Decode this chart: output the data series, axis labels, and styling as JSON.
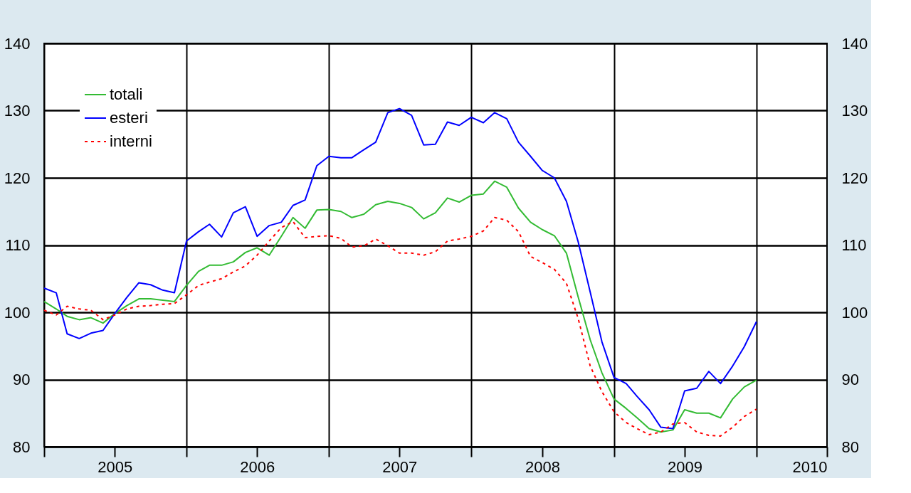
{
  "chart_data": {
    "type": "line",
    "x": [
      "2005-01",
      "2005-02",
      "2005-03",
      "2005-04",
      "2005-05",
      "2005-06",
      "2005-07",
      "2005-08",
      "2005-09",
      "2005-10",
      "2005-11",
      "2005-12",
      "2006-01",
      "2006-02",
      "2006-03",
      "2006-04",
      "2006-05",
      "2006-06",
      "2006-07",
      "2006-08",
      "2006-09",
      "2006-10",
      "2006-11",
      "2006-12",
      "2007-01",
      "2007-02",
      "2007-03",
      "2007-04",
      "2007-05",
      "2007-06",
      "2007-07",
      "2007-08",
      "2007-09",
      "2007-10",
      "2007-11",
      "2007-12",
      "2008-01",
      "2008-02",
      "2008-03",
      "2008-04",
      "2008-05",
      "2008-06",
      "2008-07",
      "2008-08",
      "2008-09",
      "2008-10",
      "2008-11",
      "2008-12",
      "2009-01",
      "2009-02",
      "2009-03",
      "2009-04",
      "2009-05",
      "2009-06",
      "2009-07",
      "2009-08",
      "2009-09",
      "2009-10",
      "2009-11",
      "2009-12",
      "2010-01"
    ],
    "series": [
      {
        "name": "totali",
        "color": "#33bb33",
        "line_style": "solid",
        "values": [
          101.6,
          100.5,
          99.4,
          98.9,
          99.2,
          98.4,
          99.8,
          101,
          102,
          102,
          101.8,
          101.6,
          104,
          106.1,
          107,
          107,
          107.5,
          108.9,
          109.6,
          108.5,
          111.3,
          114.1,
          112.5,
          115.2,
          115.3,
          115,
          114.1,
          114.6,
          116,
          116.5,
          116.2,
          115.6,
          113.9,
          114.8,
          117,
          116.4,
          117.4,
          117.6,
          119.5,
          118.6,
          115.5,
          113.4,
          112.3,
          111.4,
          108.8,
          102.3,
          95.9,
          91,
          87.1,
          85.7,
          84.3,
          82.7,
          82.2,
          82.5,
          85.5,
          85,
          85,
          84.3,
          87.1,
          88.9,
          89.9
        ]
      },
      {
        "name": "esteri",
        "color": "#0000ff",
        "line_style": "solid",
        "values": [
          103.6,
          102.9,
          96.8,
          96.1,
          96.9,
          97.3,
          99.8,
          102.2,
          104.4,
          104.1,
          103.3,
          102.9,
          110.6,
          112,
          113.1,
          111.2,
          114.8,
          115.7,
          111.3,
          112.9,
          113.4,
          115.9,
          116.7,
          121.8,
          123.2,
          123,
          123,
          124.2,
          125.3,
          129.7,
          130.3,
          129.3,
          124.9,
          125,
          128.3,
          127.8,
          129,
          128.2,
          129.7,
          128.8,
          125.3,
          123.2,
          121.1,
          120,
          116.5,
          110.5,
          103,
          95.6,
          90.3,
          89.4,
          87.5,
          85.5,
          82.9,
          82.7,
          88.3,
          88.7,
          91.2,
          89.4,
          92,
          94.9,
          98.6
        ]
      },
      {
        "name": "interni",
        "color": "#ff0000",
        "line_style": "dotted",
        "values": [
          100.3,
          99.6,
          100.9,
          100.5,
          100.3,
          98.9,
          99.6,
          100.5,
          100.9,
          101,
          101.2,
          101.3,
          102.6,
          104,
          104.5,
          105,
          106,
          106.9,
          108.5,
          110.6,
          112.6,
          113.5,
          111.1,
          111.3,
          111.4,
          111,
          109.7,
          109.9,
          110.9,
          109.9,
          108.8,
          108.8,
          108.5,
          109,
          110.6,
          110.9,
          111.3,
          112.1,
          114.1,
          113.7,
          112,
          108.3,
          107.4,
          106.4,
          104.3,
          99.1,
          92,
          88.2,
          85.2,
          83.6,
          82.7,
          81.8,
          82.2,
          83.4,
          83.6,
          82.2,
          81.7,
          81.6,
          82.9,
          84.5,
          85.6
        ]
      }
    ],
    "xlim": [
      "2005-01",
      "2010-07"
    ],
    "xticks": [
      {
        "value": "2005-01",
        "label": null
      },
      {
        "value": "2005-07",
        "label": "2005"
      },
      {
        "value": "2006-01",
        "label": null
      },
      {
        "value": "2006-07",
        "label": "2006"
      },
      {
        "value": "2007-01",
        "label": null
      },
      {
        "value": "2007-07",
        "label": "2007"
      },
      {
        "value": "2008-01",
        "label": null
      },
      {
        "value": "2008-07",
        "label": "2008"
      },
      {
        "value": "2009-01",
        "label": null
      },
      {
        "value": "2009-07",
        "label": "2009"
      },
      {
        "value": "2010-01",
        "label": null
      },
      {
        "value": "2010-07",
        "label": "2010"
      }
    ],
    "ylim": [
      80,
      140
    ],
    "yticks": [
      80,
      90,
      100,
      110,
      120,
      130,
      140
    ],
    "y2lim": [
      80,
      140
    ],
    "y2ticks": [
      80,
      90,
      100,
      110,
      120,
      130,
      140
    ],
    "grid": true,
    "legend": "top left"
  }
}
